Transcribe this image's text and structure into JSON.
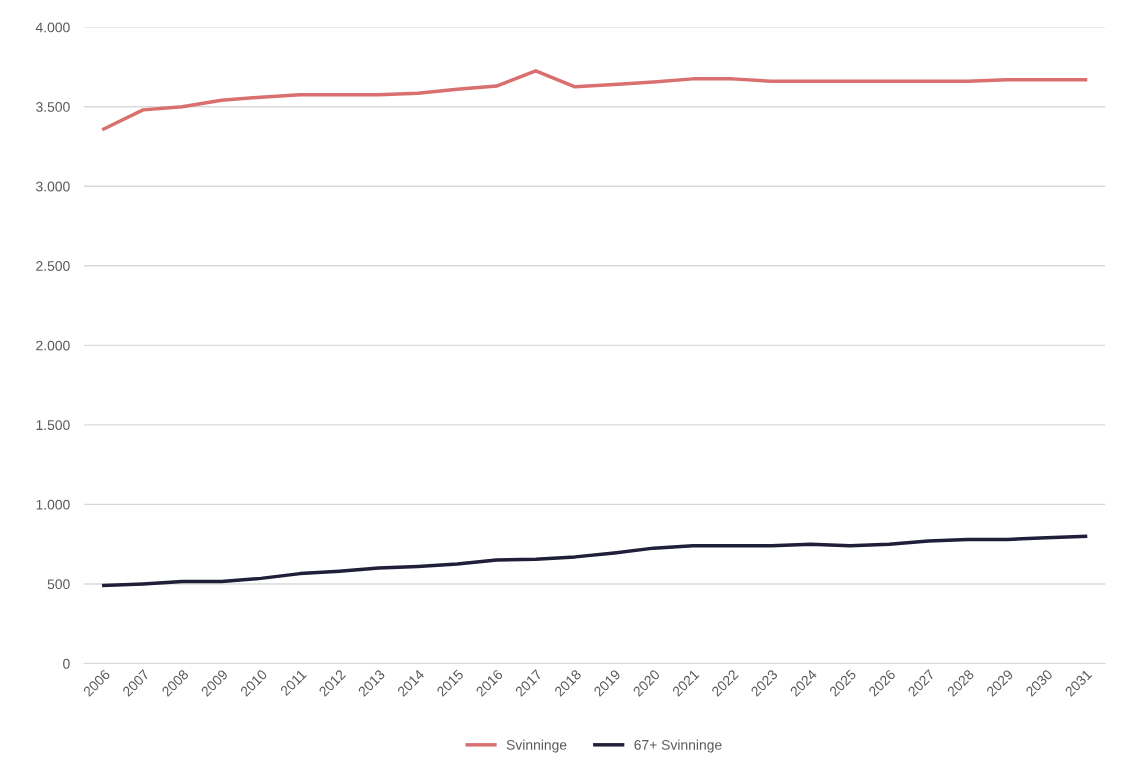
{
  "chart_data": {
    "type": "line",
    "categories": [
      "2006",
      "2007",
      "2008",
      "2009",
      "2010",
      "2011",
      "2012",
      "2013",
      "2014",
      "2015",
      "2016",
      "2017",
      "2018",
      "2019",
      "2020",
      "2021",
      "2022",
      "2023",
      "2024",
      "2025",
      "2026",
      "2027",
      "2028",
      "2029",
      "2030",
      "2031"
    ],
    "series": [
      {
        "name": "Svinninge",
        "color": "#d9706f",
        "values": [
          3360,
          3480,
          3500,
          3540,
          3560,
          3575,
          3575,
          3575,
          3585,
          3610,
          3630,
          3725,
          3625,
          3640,
          3655,
          3675,
          3675,
          3660,
          3660,
          3660,
          3660,
          3660,
          3660,
          3670,
          3670,
          3670
        ]
      },
      {
        "name": "67+ Svinninge",
        "color": "#1f1f3a",
        "values": [
          490,
          500,
          515,
          515,
          535,
          565,
          580,
          600,
          610,
          625,
          650,
          655,
          670,
          695,
          725,
          740,
          740,
          740,
          750,
          740,
          750,
          770,
          780,
          780,
          790,
          800
        ]
      }
    ],
    "ylim": [
      0,
      4000
    ],
    "yticks": [
      {
        "value": 0,
        "label": "0"
      },
      {
        "value": 500,
        "label": "500"
      },
      {
        "value": 1000,
        "label": "1.000"
      },
      {
        "value": 1500,
        "label": "1.500"
      },
      {
        "value": 2000,
        "label": "2.000"
      },
      {
        "value": 2500,
        "label": "2.500"
      },
      {
        "value": 3000,
        "label": "3.000"
      },
      {
        "value": 3500,
        "label": "3.500"
      },
      {
        "value": 4000,
        "label": "4.000"
      }
    ],
    "grid": "y",
    "legend": "bottom",
    "marker": "none",
    "line_style": "solid"
  }
}
